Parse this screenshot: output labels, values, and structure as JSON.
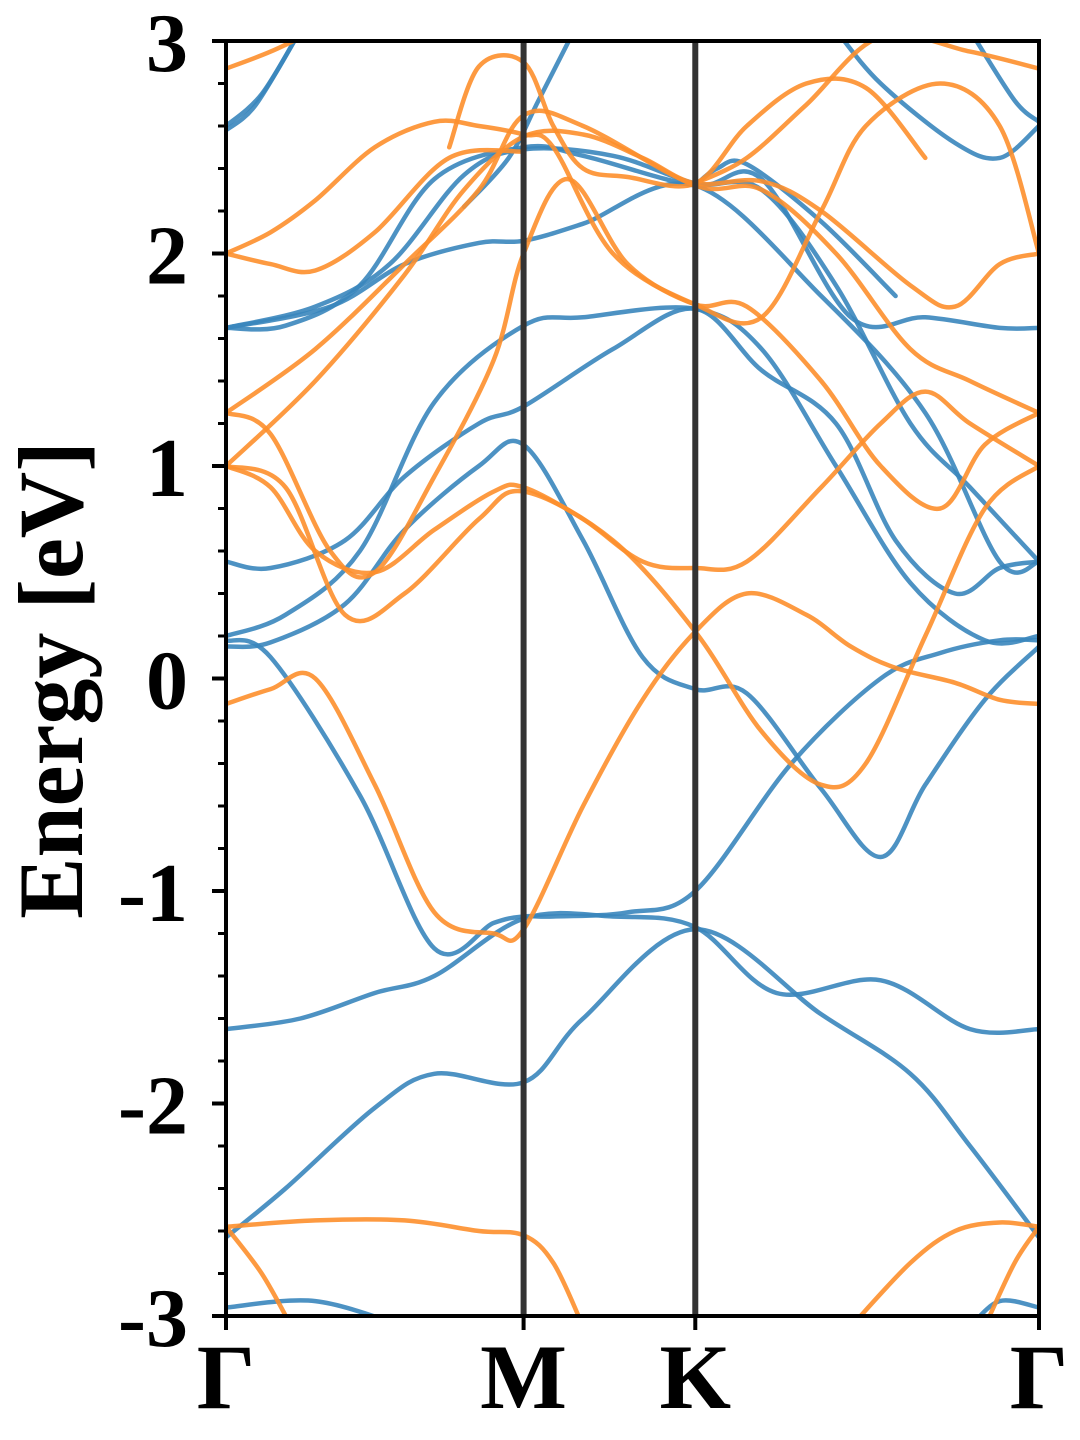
{
  "chart_data": {
    "type": "line",
    "ylabel": "Energy [eV]",
    "xlabel": "",
    "title": "",
    "ylim": [
      -3,
      3
    ],
    "yticks": [
      -3,
      -2,
      -1,
      0,
      1,
      2,
      3
    ],
    "ytick_labels": [
      "-3",
      "-2",
      "-1",
      "0",
      "1",
      "2",
      "3"
    ],
    "y_minor_step": 0.2,
    "xlim": [
      0,
      2.732
    ],
    "kpoints": [
      {
        "label": "Γ",
        "x": 0
      },
      {
        "label": "M",
        "x": 1.0
      },
      {
        "label": "K",
        "x": 1.577
      },
      {
        "label": "Γ",
        "x": 2.732
      }
    ],
    "grid": false,
    "legend": "none",
    "colors": {
      "blue": "#3a86bd",
      "orange": "#fd8f2c",
      "kline": "#333333"
    },
    "series": [
      {
        "color": "blue",
        "x": [
          0,
          0.2,
          0.5,
          0.7,
          1.0,
          1.2,
          1.577,
          2.0,
          2.3,
          2.5,
          2.732
        ],
        "y": [
          -2.63,
          -2.4,
          -2.02,
          -1.86,
          -1.9,
          -1.6,
          -1.18,
          -1.58,
          -1.86,
          -2.2,
          -2.63
        ]
      },
      {
        "color": "blue",
        "x": [
          0,
          0.25,
          0.5,
          0.7,
          1.0,
          1.3,
          1.577,
          1.85,
          2.2,
          2.5,
          2.732
        ],
        "y": [
          -1.65,
          -1.6,
          -1.48,
          -1.4,
          -1.13,
          -1.12,
          -1.17,
          -1.48,
          -1.42,
          -1.65,
          -1.65
        ]
      },
      {
        "color": "blue",
        "x": [
          0,
          0.15,
          0.45,
          0.7,
          0.9,
          1.0,
          1.1,
          1.35,
          1.577,
          1.9,
          2.2,
          2.4,
          2.6,
          2.732
        ],
        "y": [
          0.18,
          0.1,
          -0.55,
          -1.27,
          -1.15,
          -1.12,
          -1.12,
          -1.1,
          -1.0,
          -0.4,
          0.0,
          0.12,
          0.18,
          0.18
        ]
      },
      {
        "color": "blue",
        "x": [
          0,
          0.15,
          0.4,
          0.6,
          0.85,
          1.0,
          1.2,
          1.4,
          1.577,
          1.75,
          2.0,
          2.2,
          2.35,
          2.55,
          2.732
        ],
        "y": [
          0.15,
          0.17,
          0.35,
          0.7,
          1.0,
          1.1,
          0.65,
          0.1,
          -0.05,
          -0.07,
          -0.52,
          -0.84,
          -0.5,
          -0.1,
          0.15
        ]
      },
      {
        "color": "blue",
        "x": [
          0,
          0.15,
          0.4,
          0.6,
          0.85,
          1.0,
          1.3,
          1.577,
          1.8,
          2.05,
          2.25,
          2.45,
          2.6,
          2.732
        ],
        "y": [
          0.55,
          0.52,
          0.65,
          0.95,
          1.2,
          1.28,
          1.55,
          1.74,
          1.45,
          1.2,
          0.65,
          0.4,
          0.52,
          0.55
        ]
      },
      {
        "color": "blue",
        "x": [
          0,
          0.2,
          0.45,
          0.7,
          1.0,
          1.2,
          1.577,
          1.8,
          2.05,
          2.3,
          2.55,
          2.732
        ],
        "y": [
          0.2,
          0.3,
          0.6,
          1.3,
          1.66,
          1.7,
          1.74,
          1.55,
          1.0,
          0.45,
          0.18,
          0.2
        ]
      },
      {
        "color": "blue",
        "x": [
          0,
          0.3,
          0.55,
          0.8,
          1.0,
          1.3,
          1.577,
          1.8,
          2.05,
          2.3,
          2.5,
          2.732
        ],
        "y": [
          1.65,
          1.75,
          1.95,
          2.37,
          2.49,
          2.46,
          2.33,
          2.3,
          1.85,
          1.2,
          0.9,
          0.55
        ]
      },
      {
        "color": "blue",
        "x": [
          0,
          0.2,
          0.45,
          0.7,
          1.0,
          1.2,
          1.577,
          1.8,
          2.1,
          2.35,
          2.6,
          2.732
        ],
        "y": [
          1.65,
          1.66,
          1.85,
          2.35,
          2.5,
          2.46,
          2.32,
          2.35,
          1.7,
          1.7,
          1.65,
          1.65
        ]
      },
      {
        "color": "blue",
        "x": [
          0,
          0.35,
          0.6,
          0.85,
          1.0,
          1.2,
          1.577,
          2.0,
          2.35,
          2.6,
          2.732
        ],
        "y": [
          1.65,
          1.75,
          1.95,
          2.05,
          2.06,
          2.14,
          2.32,
          1.8,
          1.25,
          0.55,
          0.55
        ]
      },
      {
        "color": "blue",
        "x": [
          0,
          0.12,
          0.25
        ],
        "y": [
          2.6,
          2.75,
          3.05
        ]
      },
      {
        "color": "blue",
        "x": [
          0,
          0.1,
          0.25
        ],
        "y": [
          2.58,
          2.7,
          3.05
        ]
      },
      {
        "color": "blue",
        "x": [
          0.8,
          0.95,
          1.05,
          1.17
        ],
        "y": [
          2.22,
          2.45,
          2.72,
          3.05
        ]
      },
      {
        "color": "blue",
        "x": [
          1.577,
          1.65,
          1.75,
          2.0,
          2.25
        ],
        "y": [
          2.32,
          2.4,
          2.42,
          2.15,
          1.8
        ]
      },
      {
        "color": "blue",
        "x": [
          2.05,
          2.2,
          2.45,
          2.6,
          2.732
        ],
        "y": [
          3.05,
          2.8,
          2.52,
          2.45,
          2.6
        ]
      },
      {
        "color": "blue",
        "x": [
          2.5,
          2.65,
          2.732
        ],
        "y": [
          3.05,
          2.72,
          2.62
        ]
      },
      {
        "color": "blue",
        "x": [
          0,
          0.3,
          0.6
        ],
        "y": [
          -2.96,
          -2.93,
          -3.05
        ]
      },
      {
        "color": "blue",
        "x": [
          2.5,
          2.6,
          2.732
        ],
        "y": [
          -3.05,
          -2.93,
          -2.96
        ]
      },
      {
        "color": "orange",
        "x": [
          0,
          0.15,
          0.3,
          0.5,
          0.7,
          0.9,
          1.0,
          1.2,
          1.4,
          1.577,
          1.75,
          1.95,
          2.1,
          2.25,
          2.45,
          2.6,
          2.732
        ],
        "y": [
          -0.12,
          -0.05,
          0.0,
          -0.5,
          -1.1,
          -1.2,
          -1.18,
          -0.6,
          -0.1,
          0.22,
          0.4,
          0.3,
          0.15,
          0.05,
          -0.02,
          -0.1,
          -0.12
        ]
      },
      {
        "color": "orange",
        "x": [
          0,
          0.2,
          0.4,
          0.6,
          0.85,
          1.0,
          1.3,
          1.577,
          1.8,
          2.0,
          2.15,
          2.35,
          2.55,
          2.732
        ],
        "y": [
          1.0,
          0.9,
          0.3,
          0.4,
          0.75,
          0.88,
          0.65,
          0.22,
          -0.25,
          -0.5,
          -0.4,
          0.2,
          0.8,
          1.0
        ]
      },
      {
        "color": "orange",
        "x": [
          0,
          0.15,
          0.3,
          0.5,
          0.7,
          0.9,
          1.0,
          1.2,
          1.4,
          1.577,
          1.75,
          2.0,
          2.2,
          2.35,
          2.5,
          2.732
        ],
        "y": [
          1.0,
          0.9,
          0.6,
          0.5,
          0.7,
          0.88,
          0.9,
          0.75,
          0.55,
          0.52,
          0.55,
          0.9,
          1.2,
          1.35,
          1.2,
          1.0
        ]
      },
      {
        "color": "orange",
        "x": [
          0,
          0.15,
          0.35,
          0.5,
          0.7,
          0.9,
          1.0,
          1.15,
          1.35,
          1.577,
          1.75,
          2.0,
          2.2,
          2.4,
          2.55,
          2.732
        ],
        "y": [
          1.25,
          1.15,
          0.6,
          0.5,
          0.95,
          1.5,
          2.0,
          2.35,
          1.95,
          1.76,
          1.75,
          1.4,
          1.0,
          0.8,
          1.1,
          1.25
        ]
      },
      {
        "color": "orange",
        "x": [
          0,
          0.3,
          0.6,
          0.85,
          1.0,
          1.2,
          1.577,
          1.8,
          2.05,
          2.3,
          2.5,
          2.732
        ],
        "y": [
          1.25,
          1.55,
          1.95,
          2.3,
          2.65,
          2.6,
          2.32,
          2.3,
          2.0,
          1.55,
          1.4,
          1.25
        ]
      },
      {
        "color": "orange",
        "x": [
          0,
          0.3,
          0.6,
          0.8,
          1.0,
          1.2,
          1.4,
          1.577,
          1.8,
          2.0,
          2.3,
          2.45,
          2.6,
          2.732
        ],
        "y": [
          1.0,
          1.4,
          1.9,
          2.3,
          2.55,
          2.56,
          2.45,
          2.33,
          2.34,
          2.2,
          1.85,
          1.75,
          1.95,
          2.0
        ]
      },
      {
        "color": "orange",
        "x": [
          0,
          0.15,
          0.3,
          0.5,
          0.7,
          0.85,
          1.0,
          1.1,
          1.3,
          1.577,
          1.8,
          2.0,
          2.15,
          2.4,
          2.6,
          2.732
        ],
        "y": [
          2.0,
          2.1,
          2.25,
          2.5,
          2.62,
          2.6,
          2.56,
          2.5,
          2.0,
          1.76,
          1.7,
          2.2,
          2.6,
          2.8,
          2.6,
          2.0
        ]
      },
      {
        "color": "orange",
        "x": [
          0,
          0.15,
          0.3,
          0.5,
          0.75,
          1.0
        ],
        "y": [
          2.0,
          1.95,
          1.92,
          2.1,
          2.45,
          2.48
        ]
      },
      {
        "color": "orange",
        "x": [
          0,
          0.15,
          0.3
        ],
        "y": [
          2.87,
          2.95,
          3.05
        ]
      },
      {
        "color": "orange",
        "x": [
          0.75,
          0.85,
          1.0,
          1.1,
          1.2,
          1.35,
          1.577,
          1.75,
          1.95,
          2.15,
          2.35
        ],
        "y": [
          2.5,
          2.88,
          2.9,
          2.6,
          2.4,
          2.36,
          2.33,
          2.6,
          2.8,
          2.78,
          2.45
        ]
      },
      {
        "color": "orange",
        "x": [
          1.577,
          1.75,
          1.95,
          2.2,
          2.5,
          2.732
        ],
        "y": [
          2.33,
          2.45,
          2.7,
          3.02,
          2.95,
          2.87
        ]
      },
      {
        "color": "orange",
        "x": [
          0,
          0.3,
          0.6,
          0.85,
          1.0,
          1.1,
          1.2
        ],
        "y": [
          -2.58,
          -2.55,
          -2.55,
          -2.6,
          -2.62,
          -2.75,
          -3.05
        ]
      },
      {
        "color": "orange",
        "x": [
          0,
          0.12,
          0.22
        ],
        "y": [
          -2.58,
          -2.8,
          -3.05
        ]
      },
      {
        "color": "orange",
        "x": [
          2.1,
          2.3,
          2.45,
          2.6,
          2.732
        ],
        "y": [
          -3.05,
          -2.75,
          -2.6,
          -2.56,
          -2.58
        ]
      },
      {
        "color": "orange",
        "x": [
          2.55,
          2.65,
          2.732
        ],
        "y": [
          -3.05,
          -2.75,
          -2.58
        ]
      }
    ]
  }
}
